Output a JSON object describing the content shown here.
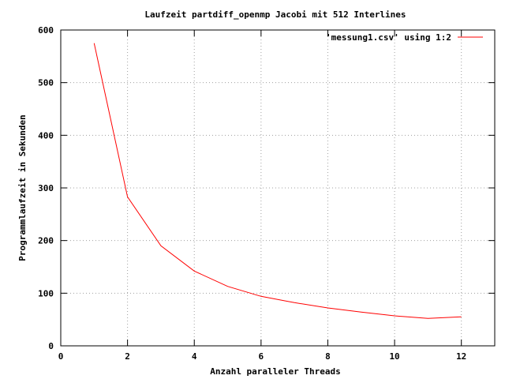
{
  "chart_data": {
    "type": "line",
    "title": "Laufzeit partdiff_openmp Jacobi mit 512 Interlines",
    "xlabel": "Anzahl paralleler Threads",
    "ylabel": "Programmlaufzeit in Sekunden",
    "xlim": [
      0,
      13
    ],
    "ylim": [
      0,
      600
    ],
    "xticks": [
      0,
      2,
      4,
      6,
      8,
      10,
      12
    ],
    "yticks": [
      0,
      100,
      200,
      300,
      400,
      500,
      600
    ],
    "grid": true,
    "legend_position": "top-right",
    "series": [
      {
        "name": "'messung1.csv' using 1:2",
        "color": "#ff0000",
        "x": [
          1,
          2,
          3,
          4,
          5,
          6,
          7,
          8,
          9,
          10,
          11,
          12
        ],
        "values": [
          575,
          283,
          190,
          142,
          113,
          94,
          82,
          72,
          64,
          57,
          52,
          55
        ]
      }
    ]
  }
}
